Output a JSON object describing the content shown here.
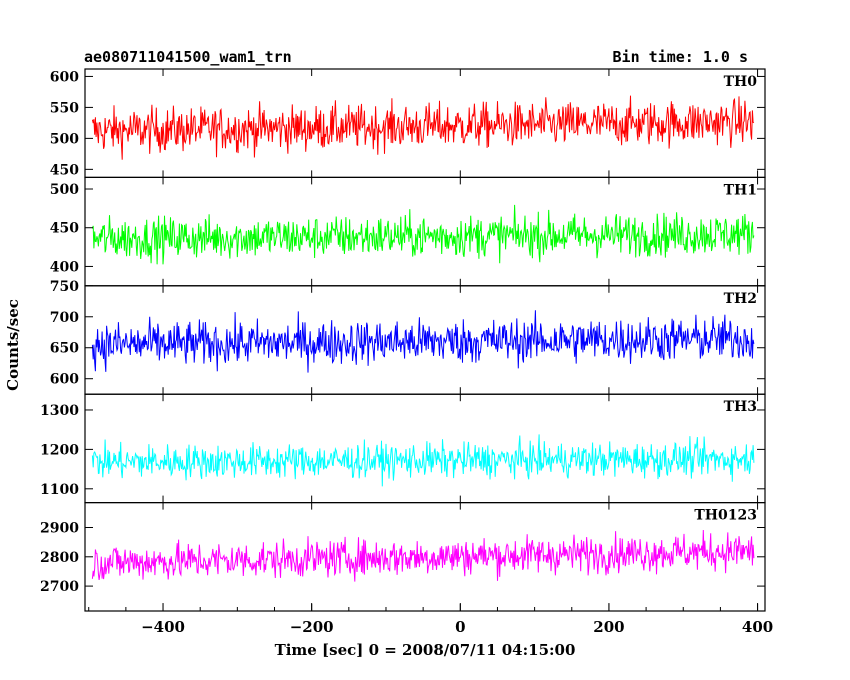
{
  "header": {
    "title": "ae080711041500_wam1_trn",
    "bin_time": "Bin time: 1.0 s"
  },
  "chart_data": {
    "type": "line",
    "xlabel": "Time [sec] 0 = 2008/07/11 04:15:00",
    "ylabel": "Counts/sec",
    "xlim": [
      -505,
      410
    ],
    "x_ticks": [
      -400,
      -200,
      0,
      200,
      400
    ],
    "x_tick_labels": [
      "−400",
      "−200",
      "0",
      "200",
      "400"
    ],
    "x_data_range": [
      -495,
      395
    ],
    "panels": [
      {
        "name": "TH0",
        "color": "#ff0000",
        "ylim": [
          437,
          612
        ],
        "mean": 512,
        "amplitude": 33,
        "trend": 15,
        "y_ticks": [
          450,
          500,
          550,
          600
        ]
      },
      {
        "name": "TH1",
        "color": "#00ff00",
        "ylim": [
          375,
          515
        ],
        "mean": 436,
        "amplitude": 25,
        "trend": 6,
        "y_ticks": [
          400,
          450,
          500
        ]
      },
      {
        "name": "TH2",
        "color": "#0000ff",
        "ylim": [
          575,
          750
        ],
        "mean": 655,
        "amplitude": 33,
        "trend": 10,
        "y_ticks": [
          600,
          650,
          700,
          750
        ]
      },
      {
        "name": "TH3",
        "color": "#00ffff",
        "ylim": [
          1065,
          1340
        ],
        "mean": 1168,
        "amplitude": 40,
        "trend": 8,
        "y_ticks": [
          1100,
          1200,
          1300
        ]
      },
      {
        "name": "TH0123",
        "color": "#ff00ff",
        "ylim": [
          2615,
          2985
        ],
        "mean": 2780,
        "amplitude": 58,
        "trend": 40,
        "y_ticks": [
          2700,
          2800,
          2900
        ]
      }
    ]
  }
}
